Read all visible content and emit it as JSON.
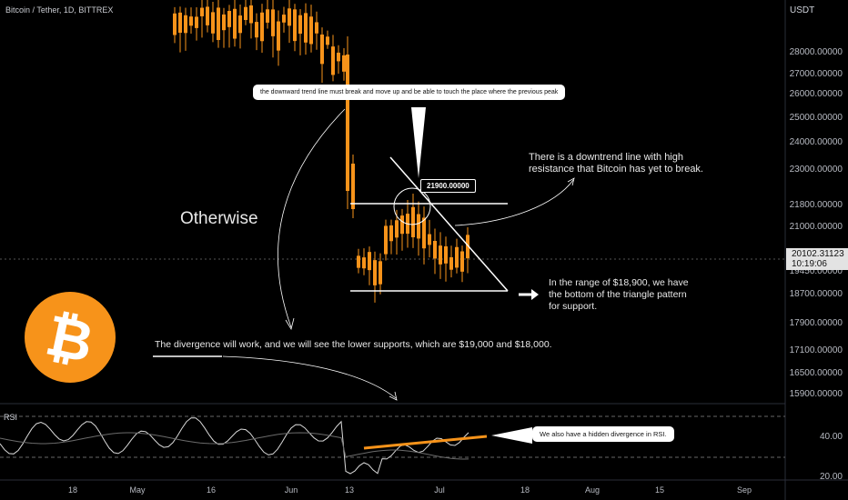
{
  "header": {
    "symbol_title": "Bitcoin / Tether, 1D, BITTREX",
    "currency": "USDT"
  },
  "price_axis": {
    "labels": [
      "28000.00000",
      "27000.00000",
      "26000.00000",
      "25000.00000",
      "24000.00000",
      "23000.00000",
      "21800.00000",
      "21000.00000",
      "19450.00000",
      "18700.00000",
      "17900.00000",
      "17100.00000",
      "16500.00000",
      "15900.00000"
    ],
    "current_price": "20102.31123",
    "countdown": "10:19:06"
  },
  "rsi": {
    "label": "RSI",
    "labels": [
      "40.00",
      "20.00"
    ]
  },
  "time_axis": {
    "labels": [
      "18",
      "May",
      "16",
      "Jun",
      "13",
      "Jul",
      "18",
      "Aug",
      "15",
      "Sep"
    ]
  },
  "annotations": {
    "top_callout": "the downward trend line must break and move up and be able to touch the place where the previous peak",
    "level_tag": "21900.00000",
    "otherwise": "Otherwise",
    "downtrend_note": "There is a downtrend line with high resistance that Bitcoin has yet to break.",
    "support_note": "In the range of $18,900, we have the bottom of the triangle pattern for support.",
    "divergence_note": "The divergence will work, and we will see the lower supports, which are $19,000 and $18,000.",
    "rsi_callout": "We also have a hidden divergence in RSI."
  },
  "colors": {
    "candle_up": "#f7931a",
    "candle_down": "#f7931a",
    "background": "#000000",
    "logo": "#f7931a",
    "rsi_highlight": "#f7931a"
  },
  "icons": {
    "logo": "bitcoin-logo-icon",
    "arrow": "right-arrow-icon"
  }
}
